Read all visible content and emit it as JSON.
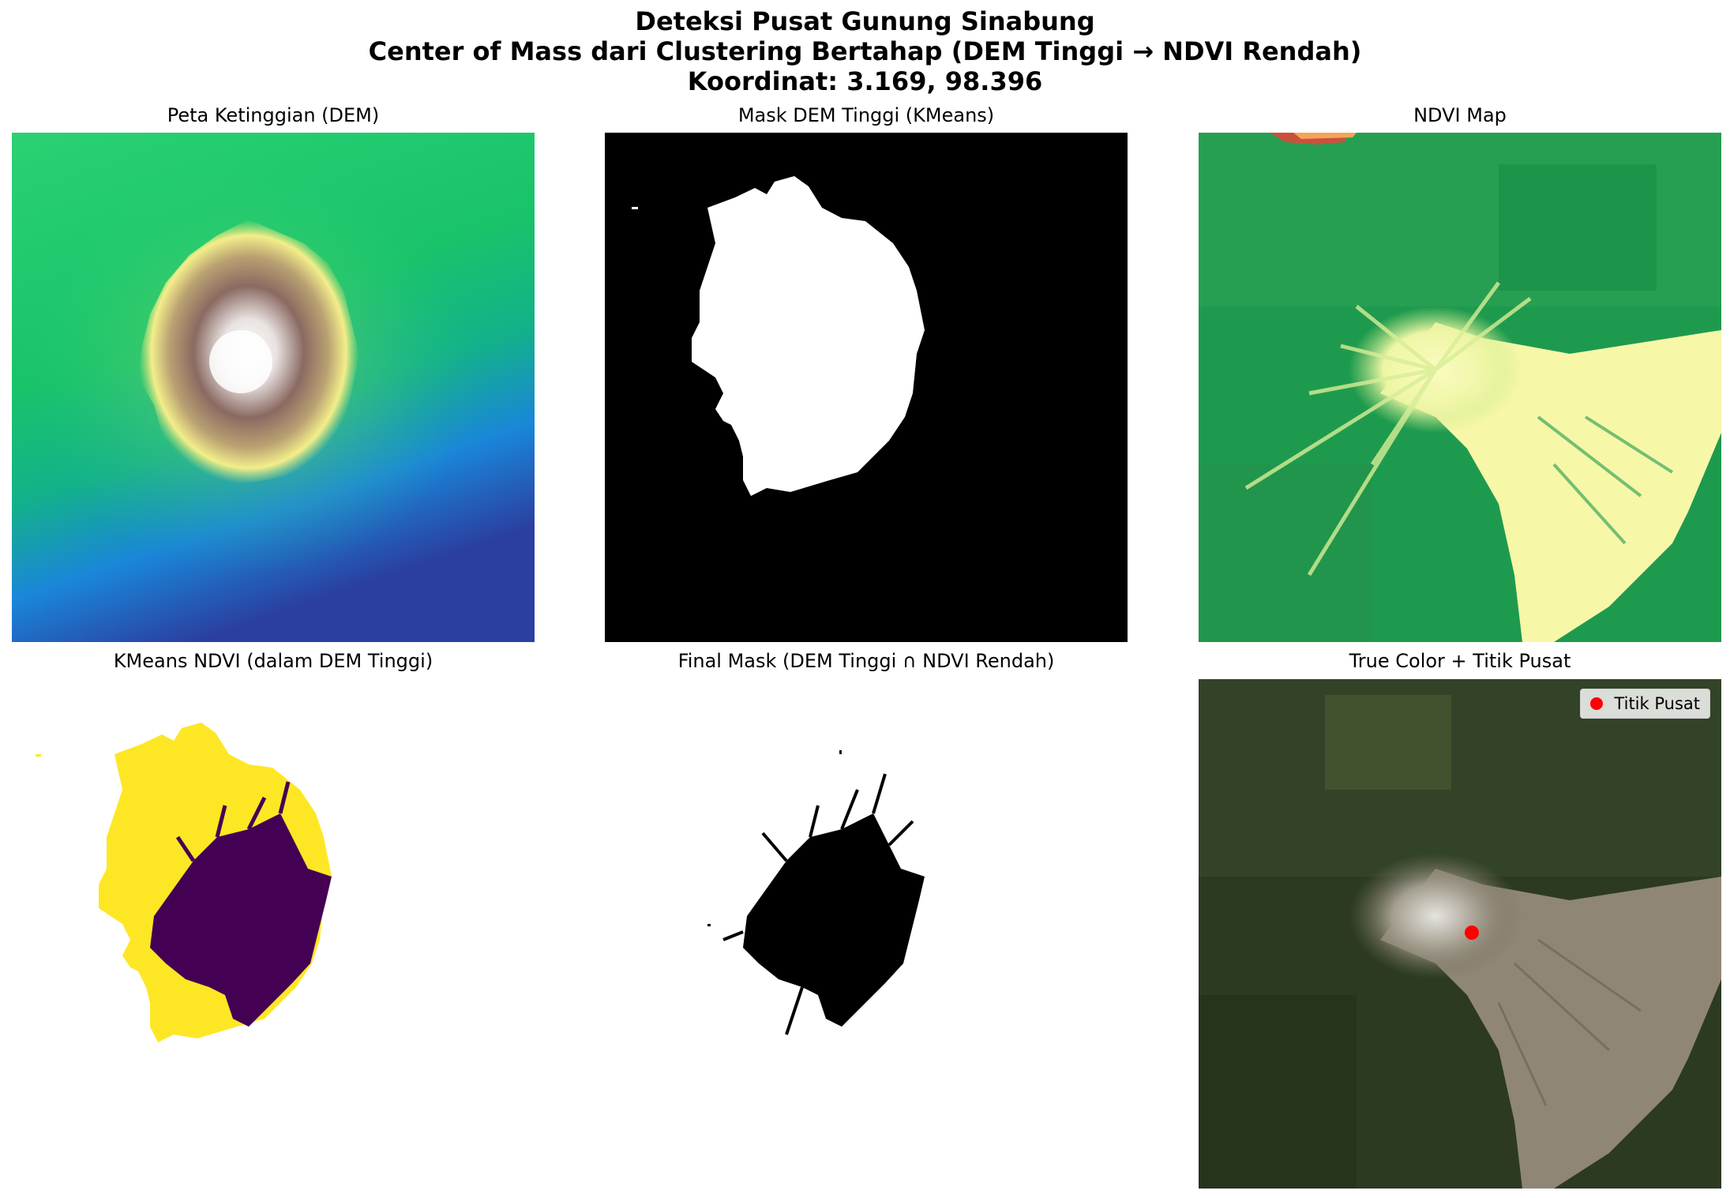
{
  "figure": {
    "title_line1": "Deteksi Pusat Gunung Sinabung",
    "title_line2": "Center of Mass dari Clustering Bertahap (DEM Tinggi → NDVI Rendah)",
    "title_line3": "Koordinat: 3.169, 98.396"
  },
  "panels": {
    "dem": {
      "title": "Peta Ketinggian (DEM)"
    },
    "mask_dem": {
      "title": "Mask DEM Tinggi (KMeans)"
    },
    "ndvi": {
      "title": "NDVI Map"
    },
    "kmeans_ndvi": {
      "title": "KMeans NDVI (dalam DEM Tinggi)"
    },
    "final_mask": {
      "title": "Final Mask (DEM Tinggi ∩ NDVI Rendah)"
    },
    "true_color": {
      "title": "True Color + Titik Pusat",
      "legend_label": "Titik Pusat",
      "marker_color": "#ff0000"
    }
  },
  "colors": {
    "mask_white": "#ffffff",
    "mask_black": "#000000",
    "viridis_yellow": "#fde725",
    "viridis_purple": "#440154",
    "ndvi_green": "#1e9a4e",
    "ndvi_yellow": "#f7f7a8"
  }
}
